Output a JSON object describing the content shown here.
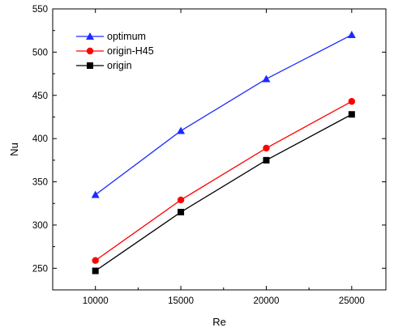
{
  "chart_data": {
    "type": "line",
    "title": "",
    "xlabel": "Re",
    "ylabel": "Nu",
    "x": [
      10000,
      15000,
      20000,
      25000
    ],
    "x_tick_labels": [
      "10000",
      "15000",
      "20000",
      "25000"
    ],
    "y_tick_labels": [
      "250",
      "300",
      "350",
      "400",
      "450",
      "500",
      "550"
    ],
    "xlim": [
      7500,
      27000
    ],
    "ylim": [
      225,
      550
    ],
    "grid": false,
    "legend_position": "top-left",
    "series": [
      {
        "name": "optimum",
        "color": "#1a2bff",
        "marker": "triangle",
        "values": [
          335,
          409,
          469,
          520
        ]
      },
      {
        "name": "origin-H45",
        "color": "#ff0000",
        "marker": "circle",
        "values": [
          259,
          329,
          389,
          443
        ]
      },
      {
        "name": "origin",
        "color": "#000000",
        "marker": "square",
        "values": [
          247,
          315,
          375,
          428
        ]
      }
    ]
  }
}
